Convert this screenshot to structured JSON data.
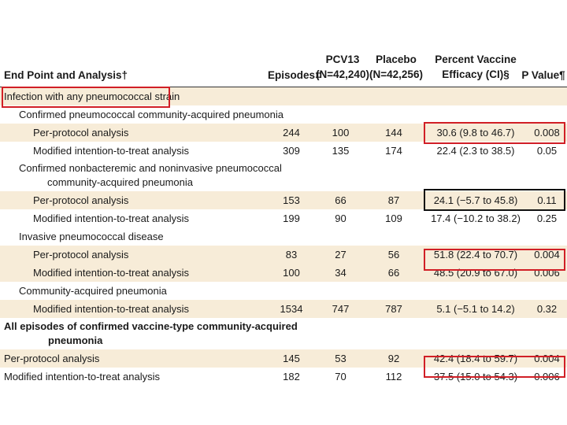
{
  "headers": {
    "endpoint": "End Point and Analysis†",
    "episodes": "Episodes‡",
    "pcv13_line1": "PCV13",
    "pcv13_line2": "(N=42,240)",
    "placebo_line1": "Placebo",
    "placebo_line2": "(N=42,256)",
    "efficacy_line1": "Percent Vaccine",
    "efficacy_line2": "Efficacy (CI)§",
    "pvalue": "P Value¶"
  },
  "rows": [
    {
      "label": "Infection with any pneumococcal strain",
      "indent": 0,
      "bold": false,
      "shaded": true
    },
    {
      "label": "Confirmed pneumococcal community-acquired pneumonia",
      "indent": 1,
      "bold": false,
      "shaded": false
    },
    {
      "label": "Per-protocol analysis",
      "indent": 2,
      "shaded": true,
      "episodes": "244",
      "pcv13": "100",
      "placebo": "144",
      "efficacy": "30.6 (9.8 to 46.7)",
      "p": "0.008"
    },
    {
      "label": "Modified intention-to-treat analysis",
      "indent": 2,
      "shaded": false,
      "episodes": "309",
      "pcv13": "135",
      "placebo": "174",
      "efficacy": "22.4 (2.3 to 38.5)",
      "p": "0.05"
    },
    {
      "label": "Confirmed nonbacteremic and noninvasive pneumococcal",
      "label2": "community-acquired pneumonia",
      "indent": 1,
      "shaded": false,
      "tall": true
    },
    {
      "label": "Per-protocol analysis",
      "indent": 2,
      "shaded": true,
      "episodes": "153",
      "pcv13": "66",
      "placebo": "87",
      "efficacy": "24.1 (−5.7 to 45.8)",
      "p": "0.11"
    },
    {
      "label": "Modified intention-to-treat analysis",
      "indent": 2,
      "shaded": false,
      "episodes": "199",
      "pcv13": "90",
      "placebo": "109",
      "efficacy": "17.4 (−10.2 to 38.2)",
      "p": "0.25"
    },
    {
      "label": "Invasive pneumococcal disease",
      "indent": 1,
      "shaded": false
    },
    {
      "label": "Per-protocol analysis",
      "indent": 2,
      "shaded": true,
      "episodes": "83",
      "pcv13": "27",
      "placebo": "56",
      "efficacy": "51.8 (22.4 to 70.7)",
      "p": "0.004"
    },
    {
      "label": "Modified intention-to-treat analysis",
      "indent": 2,
      "shaded": true,
      "episodes": "100",
      "pcv13": "34",
      "placebo": "66",
      "efficacy": "48.5 (20.9 to 67.0)",
      "p": "0.006"
    },
    {
      "label": "Community-acquired pneumonia",
      "indent": 1,
      "shaded": false
    },
    {
      "label": "Modified intention-to-treat analysis",
      "indent": 2,
      "shaded": true,
      "episodes": "1534",
      "pcv13": "747",
      "placebo": "787",
      "efficacy": "5.1 (−5.1 to 14.2)",
      "p": "0.32"
    },
    {
      "label": "All episodes of confirmed vaccine-type community-acquired",
      "label2": "pneumonia",
      "indent": 0,
      "bold": true,
      "shaded": false,
      "tall": true
    },
    {
      "label": "Per-protocol analysis",
      "indent": 0,
      "shaded": true,
      "episodes": "145",
      "pcv13": "53",
      "placebo": "92",
      "efficacy": "42.4 (18.4 to 59.7)",
      "p": "0.004"
    },
    {
      "label": "Modified intention-to-treat analysis",
      "indent": 0,
      "shaded": false,
      "episodes": "182",
      "pcv13": "70",
      "placebo": "112",
      "efficacy": "37.5 (15.0 to 54.3)",
      "p": "0.006"
    }
  ],
  "highlight_colors": {
    "red": "#d11f26",
    "black": "#111111"
  }
}
